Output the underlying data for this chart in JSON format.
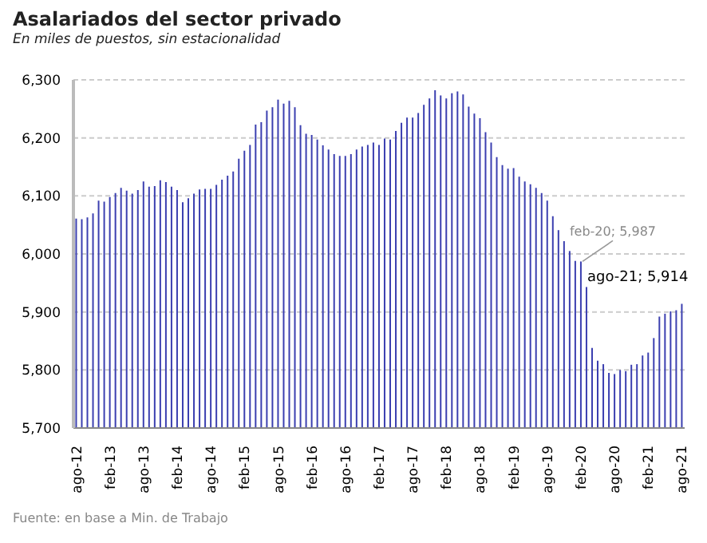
{
  "chart_data": {
    "type": "bar",
    "title": "Asalariados del sector privado",
    "subtitle": "En miles de puestos, sin estacionalidad",
    "categories": [
      "ago-12",
      null,
      null,
      null,
      null,
      null,
      "feb-13",
      null,
      null,
      null,
      null,
      null,
      "ago-13",
      null,
      null,
      null,
      null,
      null,
      "feb-14",
      null,
      null,
      null,
      null,
      null,
      "ago-14",
      null,
      null,
      null,
      null,
      null,
      "feb-15",
      null,
      null,
      null,
      null,
      null,
      "ago-15",
      null,
      null,
      null,
      null,
      null,
      "feb-16",
      null,
      null,
      null,
      null,
      null,
      "ago-16",
      null,
      null,
      null,
      null,
      null,
      "feb-17",
      null,
      null,
      null,
      null,
      null,
      "ago-17",
      null,
      null,
      null,
      null,
      null,
      "feb-18",
      null,
      null,
      null,
      null,
      null,
      "ago-18",
      null,
      null,
      null,
      null,
      null,
      "feb-19",
      null,
      null,
      null,
      null,
      null,
      "ago-19",
      null,
      null,
      null,
      null,
      null,
      "feb-20",
      null,
      null,
      null,
      null,
      null,
      "ago-20",
      null,
      null,
      null,
      null,
      null,
      "feb-21",
      null,
      null,
      null,
      null,
      null,
      "ago-21"
    ],
    "values": [
      6061,
      6060,
      6063,
      6070,
      6092,
      6090,
      6098,
      6105,
      6114,
      6109,
      6104,
      6110,
      6125,
      6116,
      6117,
      6127,
      6124,
      6116,
      6110,
      6089,
      6096,
      6104,
      6111,
      6112,
      6112,
      6119,
      6128,
      6135,
      6142,
      6164,
      6178,
      6188,
      6223,
      6227,
      6247,
      6253,
      6266,
      6259,
      6264,
      6253,
      6222,
      6207,
      6205,
      6197,
      6187,
      6180,
      6172,
      6169,
      6169,
      6172,
      6180,
      6185,
      6188,
      6192,
      6188,
      6199,
      6197,
      6212,
      6226,
      6235,
      6235,
      6243,
      6257,
      6268,
      6282,
      6273,
      6268,
      6277,
      6280,
      6275,
      6254,
      6242,
      6234,
      6210,
      6192,
      6167,
      6153,
      6147,
      6148,
      6133,
      6125,
      6120,
      6114,
      6105,
      6092,
      6065,
      6041,
      6022,
      6005,
      5988,
      5987,
      5943,
      5838,
      5816,
      5810,
      5795,
      5793,
      5800,
      5798,
      5809,
      5810,
      5825,
      5830,
      5855,
      5892,
      5897,
      5901,
      5903,
      5914
    ],
    "color": "#3b3fb0",
    "ylim": [
      5700,
      6300
    ],
    "yticks": [
      {
        "value": 5700,
        "label": "5,700"
      },
      {
        "value": 5800,
        "label": "5,800"
      },
      {
        "value": 5900,
        "label": "5,900"
      },
      {
        "value": 6000,
        "label": "6,000"
      },
      {
        "value": 6100,
        "label": "6,100"
      },
      {
        "value": 6200,
        "label": "6,200"
      },
      {
        "value": 6300,
        "label": "6,300"
      }
    ],
    "grid": "y",
    "legend": false,
    "annotations": [
      {
        "text": "feb-20; 5,987",
        "x": "feb-20",
        "y": 5987
      },
      {
        "text": "ago-21; 5,914",
        "x": "ago-21",
        "y": 5914
      },
      "Fuente: en base a Min. de Trabajo"
    ]
  }
}
